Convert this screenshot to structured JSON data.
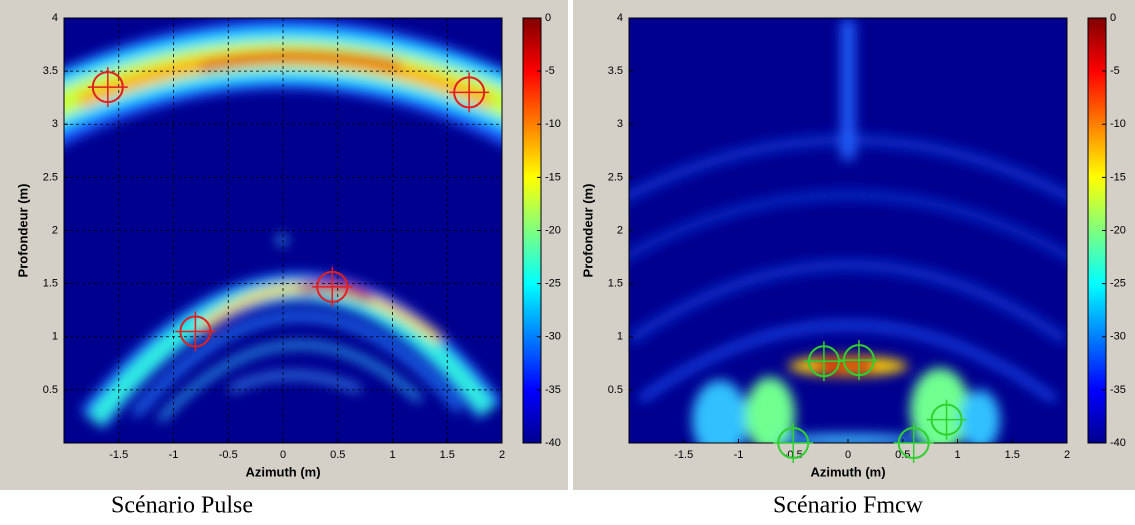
{
  "chart_data": [
    {
      "type": "heatmap",
      "caption": "Scénario Pulse",
      "xlabel": "Azimuth (m)",
      "ylabel": "Profondeur (m)",
      "xlim": [
        -2,
        2
      ],
      "ylim": [
        0,
        4
      ],
      "xticks": [
        -1.5,
        -1,
        -0.5,
        0,
        0.5,
        1,
        1.5,
        2
      ],
      "yticks": [
        0.5,
        1,
        1.5,
        2,
        2.5,
        3,
        3.5,
        4
      ],
      "grid": true,
      "colormap": "jet",
      "clim": [
        -40,
        0
      ],
      "cticks": [
        0,
        -5,
        -10,
        -15,
        -20,
        -25,
        -30,
        -35,
        -40
      ],
      "markers": {
        "color": "#e02020",
        "x": [
          -1.6,
          1.7,
          0.45,
          -0.8
        ],
        "y": [
          3.35,
          3.3,
          1.47,
          1.05
        ]
      }
    },
    {
      "type": "heatmap",
      "caption": "Scénario Fmcw",
      "xlabel": "Azimuth (m)",
      "ylabel": "Profondeur (m)",
      "xlim": [
        -2,
        2
      ],
      "ylim": [
        0,
        4
      ],
      "xticks": [
        -1.5,
        -1,
        -0.5,
        0,
        0.5,
        1,
        1.5,
        2
      ],
      "yticks": [
        0.5,
        1,
        1.5,
        2,
        2.5,
        3,
        3.5,
        4
      ],
      "grid": false,
      "colormap": "jet",
      "clim": [
        -40,
        0
      ],
      "cticks": [
        0,
        -5,
        -10,
        -15,
        -20,
        -25,
        -30,
        -35,
        -40
      ],
      "markers": {
        "color": "#30d030",
        "x": [
          -0.22,
          0.1,
          0.9,
          -0.5,
          0.6
        ],
        "y": [
          0.77,
          0.78,
          0.22,
          0.0,
          0.0
        ]
      }
    }
  ]
}
